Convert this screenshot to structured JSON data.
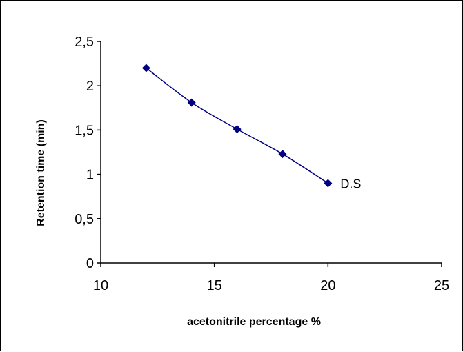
{
  "chart_data": {
    "type": "line",
    "xlabel": "acetonitrile percentage %",
    "ylabel": "Retention time (min)",
    "xlim": [
      10,
      25
    ],
    "ylim": [
      0,
      2.5
    ],
    "x_ticks": [
      "10",
      "15",
      "20",
      "25"
    ],
    "x_tick_values": [
      10,
      15,
      20,
      25
    ],
    "y_ticks": [
      "0",
      "0,5",
      "1",
      "1,5",
      "2",
      "2,5"
    ],
    "y_tick_values": [
      0,
      0.5,
      1,
      1.5,
      2,
      2.5
    ],
    "grid": false,
    "legend": "none",
    "series": [
      {
        "name": "D.S",
        "color": "#000080",
        "marker": "diamond",
        "x": [
          12,
          14,
          16,
          18,
          20
        ],
        "y": [
          2.2,
          1.81,
          1.51,
          1.23,
          0.9
        ]
      }
    ],
    "annotations": [
      {
        "text": "D.S",
        "series": 0,
        "point": 4
      }
    ]
  }
}
